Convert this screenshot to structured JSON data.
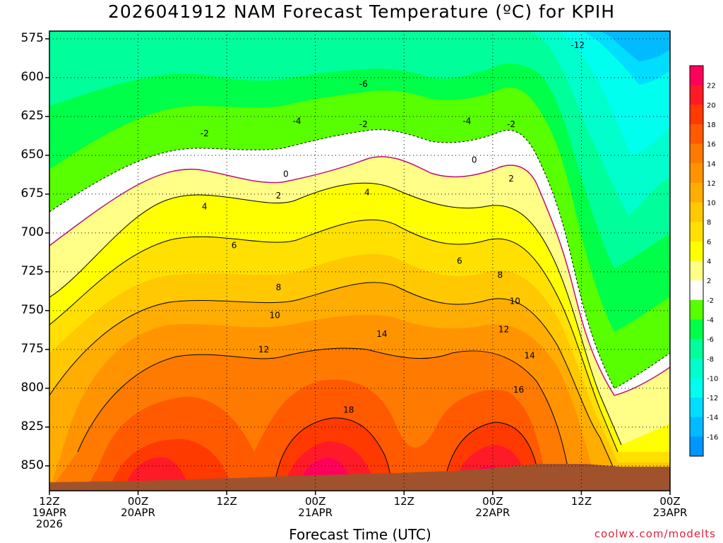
{
  "chart_data": {
    "type": "heatmap",
    "title": "2026041912 NAM Forecast Temperature (ºC) for KPIH",
    "xlabel": "Forecast Time (UTC)",
    "ylabel": "",
    "credit": "coolwx.com/modelts",
    "y_ticks": [
      "575",
      "600",
      "625",
      "650",
      "675",
      "700",
      "725",
      "750",
      "775",
      "800",
      "825",
      "850"
    ],
    "y_values": [
      575,
      600,
      625,
      650,
      675,
      700,
      725,
      750,
      775,
      800,
      825,
      850
    ],
    "ylim": [
      866,
      570
    ],
    "x_ticks": [
      {
        "hours": 0,
        "lines": [
          "12Z",
          "19APR",
          "2026"
        ]
      },
      {
        "hours": 12,
        "lines": [
          "00Z",
          "20APR"
        ]
      },
      {
        "hours": 24,
        "lines": [
          "12Z"
        ]
      },
      {
        "hours": 36,
        "lines": [
          "00Z",
          "21APR"
        ]
      },
      {
        "hours": 48,
        "lines": [
          "12Z"
        ]
      },
      {
        "hours": 60,
        "lines": [
          "00Z",
          "22APR"
        ]
      },
      {
        "hours": 72,
        "lines": [
          "12Z"
        ]
      },
      {
        "hours": 84,
        "lines": [
          "00Z",
          "23APR"
        ]
      }
    ],
    "xlim": [
      0,
      84
    ],
    "grid": true,
    "colorbar": {
      "labels": [
        "22",
        "20",
        "18",
        "16",
        "14",
        "12",
        "10",
        "8",
        "6",
        "4",
        "2",
        "-2",
        "-4",
        "-6",
        "-8",
        "-10",
        "-12",
        "-14",
        "-16"
      ],
      "colors": [
        "#ff005a",
        "#ff1a28",
        "#ff3a00",
        "#ff5a00",
        "#ff7a00",
        "#ff9400",
        "#ffad00",
        "#ffc800",
        "#ffe000",
        "#ffff00",
        "#ffff88",
        "#ffffff",
        "#57ff00",
        "#00ff48",
        "#00ff9a",
        "#00ffcc",
        "#00ffee",
        "#00ddff",
        "#00bbff",
        "#0096ff"
      ]
    },
    "isotherm_labels": [
      {
        "text": "-12",
        "hours": 71.5,
        "p": 579
      },
      {
        "text": "-6",
        "hours": 42.5,
        "p": 604
      },
      {
        "text": "-4",
        "hours": 33.5,
        "p": 628
      },
      {
        "text": "-4",
        "hours": 56.5,
        "p": 628
      },
      {
        "text": "-2",
        "hours": 21,
        "p": 636
      },
      {
        "text": "-2",
        "hours": 42.5,
        "p": 630
      },
      {
        "text": "-2",
        "hours": 62.5,
        "p": 630
      },
      {
        "text": "0",
        "hours": 32,
        "p": 662
      },
      {
        "text": "0",
        "hours": 57.5,
        "p": 653
      },
      {
        "text": "2",
        "hours": 31,
        "p": 676
      },
      {
        "text": "2",
        "hours": 62.5,
        "p": 665
      },
      {
        "text": "4",
        "hours": 21,
        "p": 683
      },
      {
        "text": "4",
        "hours": 43,
        "p": 674
      },
      {
        "text": "6",
        "hours": 25,
        "p": 708
      },
      {
        "text": "6",
        "hours": 55.5,
        "p": 718
      },
      {
        "text": "8",
        "hours": 31,
        "p": 735
      },
      {
        "text": "8",
        "hours": 61,
        "p": 727
      },
      {
        "text": "10",
        "hours": 30.5,
        "p": 753
      },
      {
        "text": "10",
        "hours": 63,
        "p": 744
      },
      {
        "text": "12",
        "hours": 29,
        "p": 775
      },
      {
        "text": "12",
        "hours": 61.5,
        "p": 762
      },
      {
        "text": "14",
        "hours": 45,
        "p": 765
      },
      {
        "text": "14",
        "hours": 65,
        "p": 779
      },
      {
        "text": "16",
        "hours": 63.5,
        "p": 801
      },
      {
        "text": "18",
        "hours": 40.5,
        "p": 814
      }
    ]
  }
}
